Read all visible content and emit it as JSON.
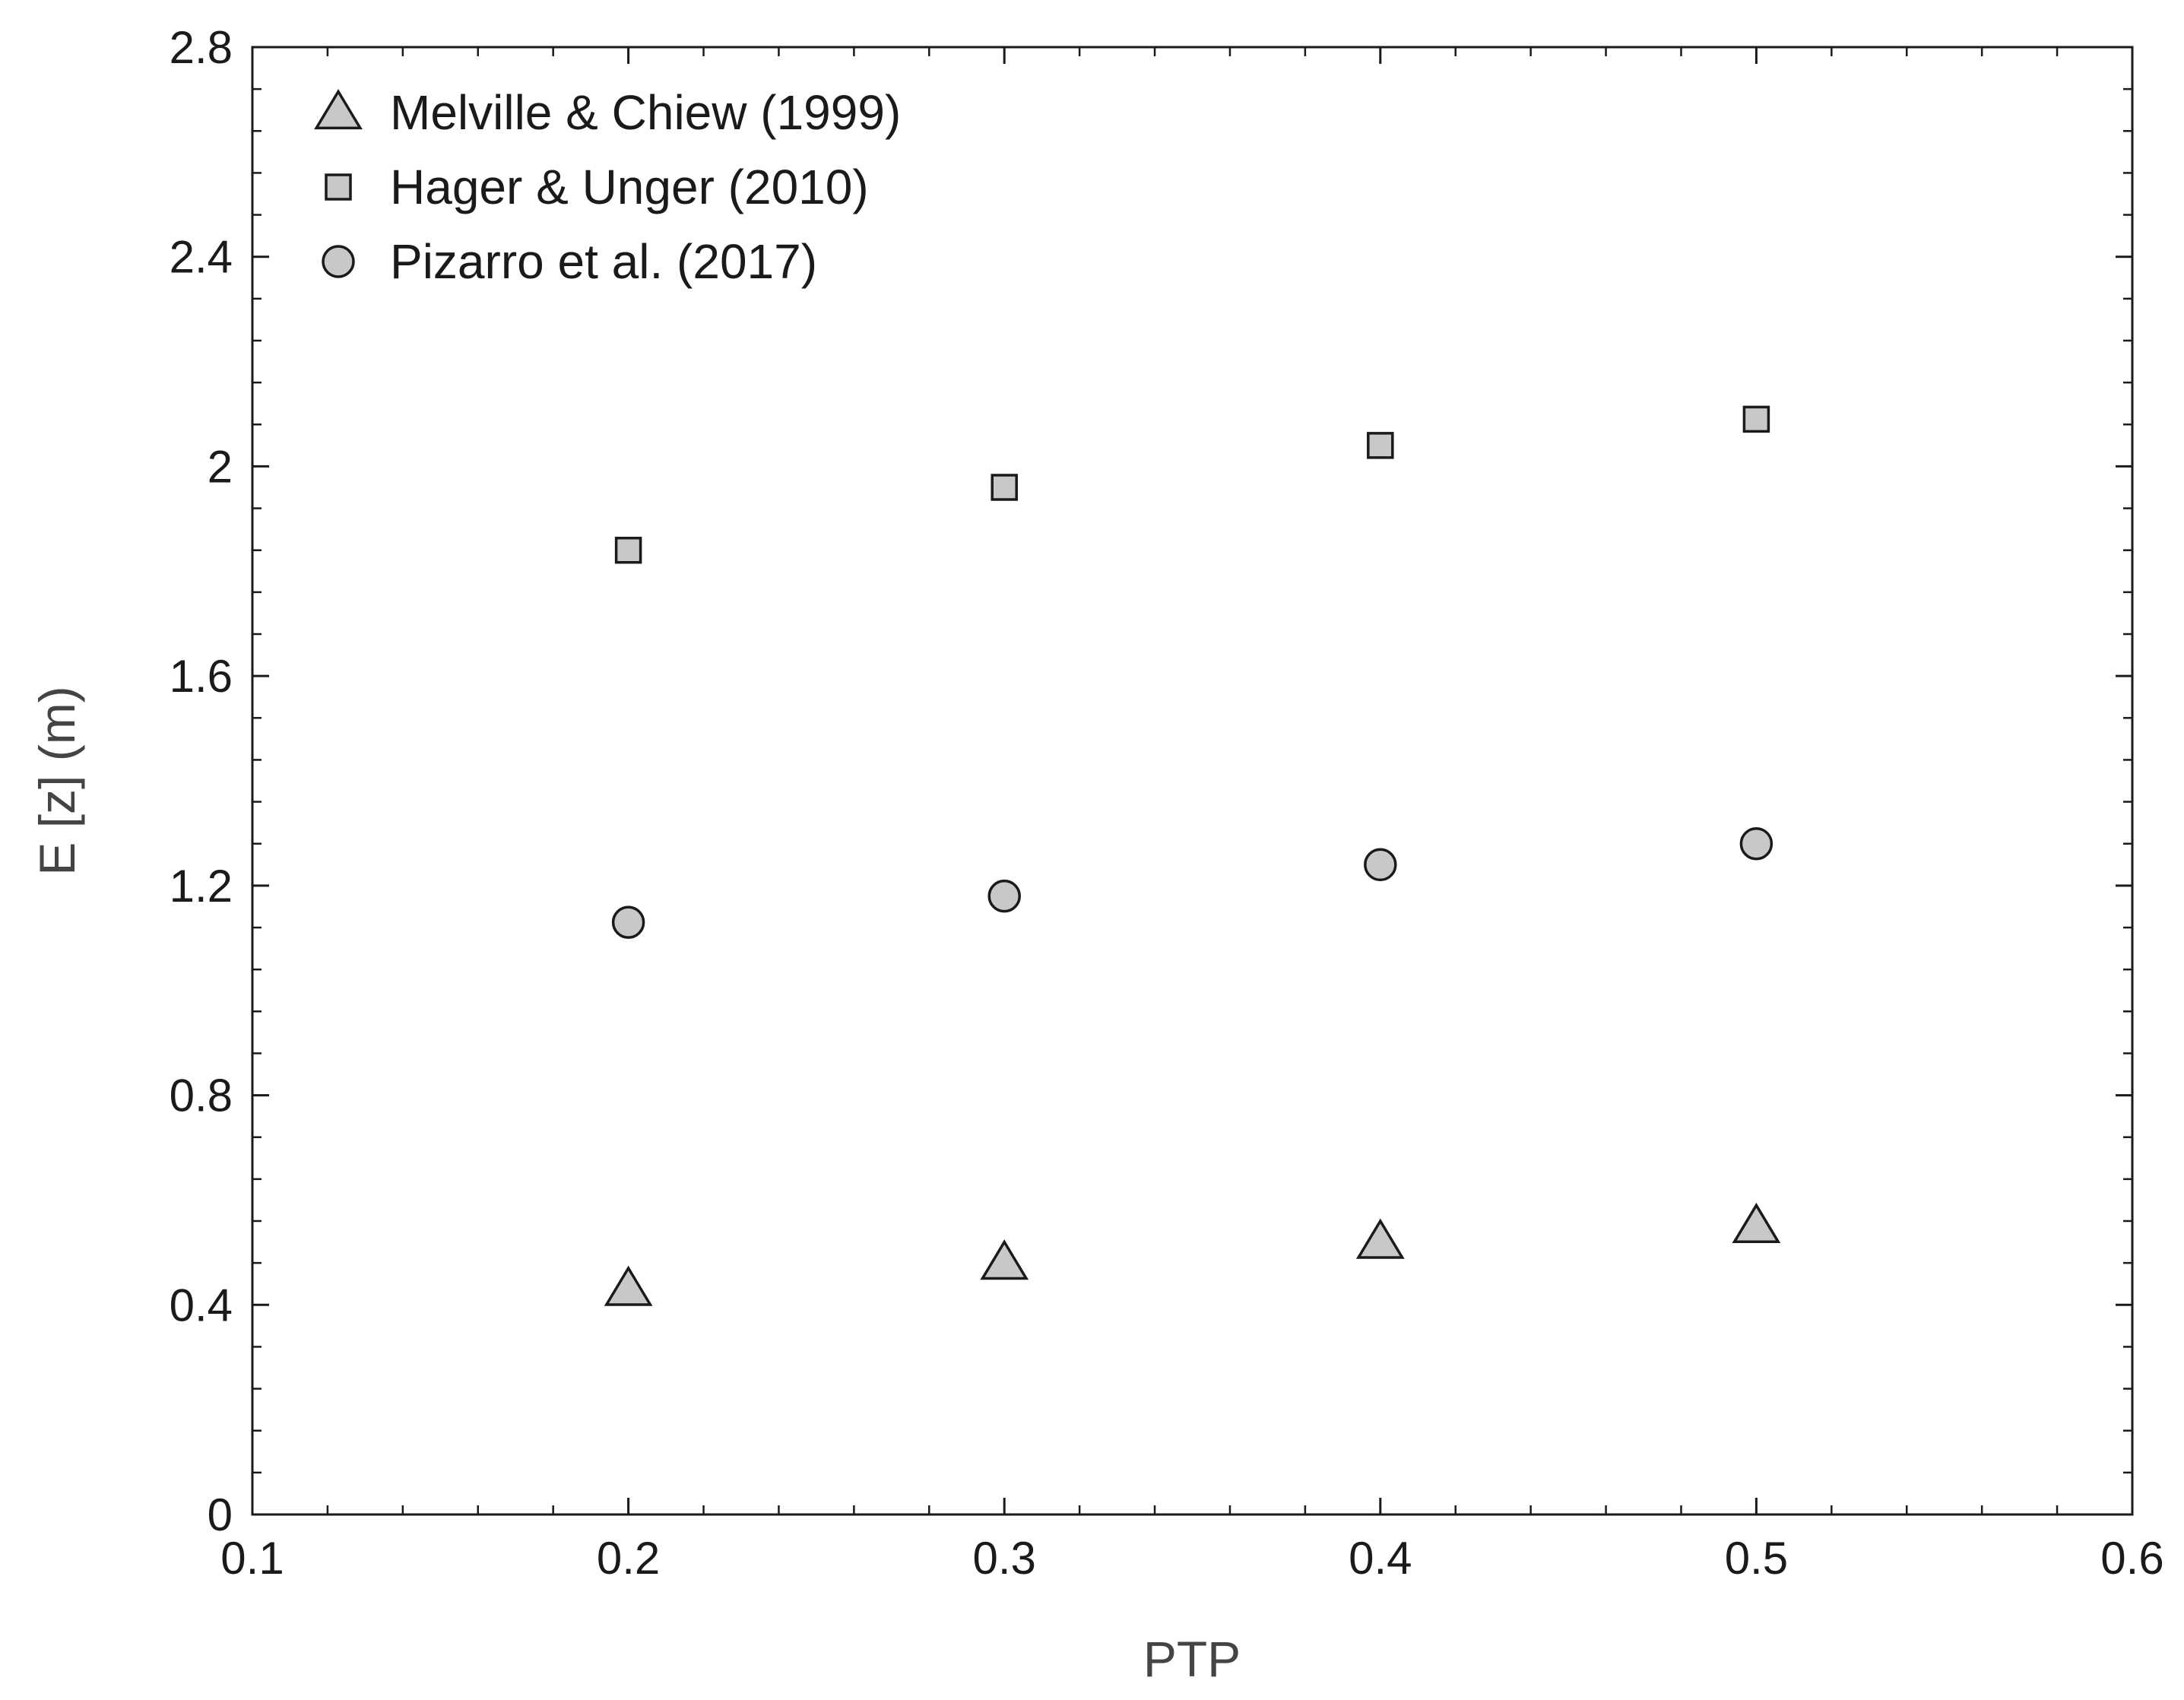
{
  "chart_data": {
    "type": "scatter",
    "xlabel": "PTP",
    "ylabel": "E [z]  (m)",
    "xlim": [
      0.1,
      0.6
    ],
    "ylim": [
      0,
      2.8
    ],
    "x_ticks": [
      "0.1",
      "0.2",
      "0.3",
      "0.4",
      "0.5",
      "0.6"
    ],
    "y_ticks": [
      "0",
      "0.4",
      "0.8",
      "1.2",
      "1.6",
      "2",
      "2.4",
      "2.8"
    ],
    "grid": false,
    "legend_position": "top-left",
    "marker_fill": "#c8c8c8",
    "marker_stroke": "#1a1a1a",
    "series": [
      {
        "name": "Melville & Chiew (1999)",
        "marker": "triangle",
        "x": [
          0.2,
          0.3,
          0.4,
          0.5
        ],
        "y": [
          0.43,
          0.48,
          0.52,
          0.55
        ]
      },
      {
        "name": "Hager & Unger (2010)",
        "marker": "square",
        "x": [
          0.2,
          0.3,
          0.4,
          0.5
        ],
        "y": [
          1.84,
          1.96,
          2.04,
          2.09
        ]
      },
      {
        "name": "Pizarro et al. (2017)",
        "marker": "circle",
        "x": [
          0.2,
          0.3,
          0.4,
          0.5
        ],
        "y": [
          1.13,
          1.18,
          1.24,
          1.28
        ]
      }
    ]
  }
}
